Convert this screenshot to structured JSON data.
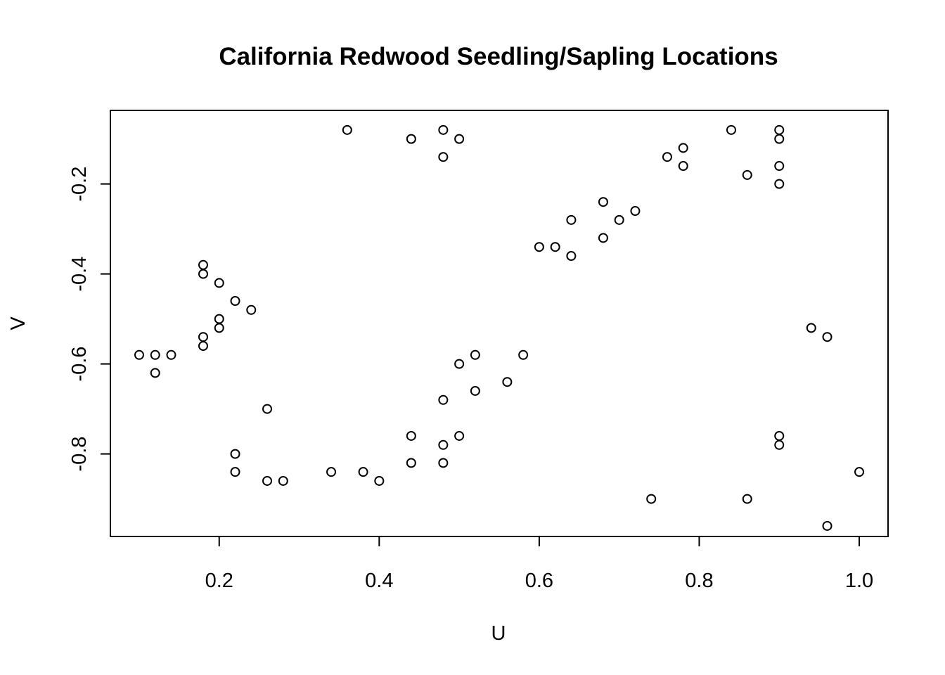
{
  "chart_data": {
    "type": "scatter",
    "title": "California Redwood Seedling/Sapling Locations",
    "xlabel": "U",
    "ylabel": "V",
    "xlim": [
      0.064,
      1.036
    ],
    "ylim": [
      -0.9835,
      -0.0365
    ],
    "grid": false,
    "legend": "none",
    "xticks": [
      0.2,
      0.4,
      0.6,
      0.8,
      1.0
    ],
    "xtick_labels": [
      "0.2",
      "0.4",
      "0.6",
      "0.8",
      "1.0"
    ],
    "yticks": [
      -0.2,
      -0.4,
      -0.6,
      -0.8
    ],
    "ytick_labels": [
      "-0.2",
      "-0.4",
      "-0.6",
      "-0.8"
    ],
    "point_color": "#000000",
    "points": [
      [
        0.36,
        -0.08
      ],
      [
        0.44,
        -0.1
      ],
      [
        0.48,
        -0.08
      ],
      [
        0.48,
        -0.14
      ],
      [
        0.5,
        -0.1
      ],
      [
        0.18,
        -0.38
      ],
      [
        0.18,
        -0.4
      ],
      [
        0.2,
        -0.42
      ],
      [
        0.22,
        -0.46
      ],
      [
        0.24,
        -0.48
      ],
      [
        0.2,
        -0.5
      ],
      [
        0.2,
        -0.52
      ],
      [
        0.18,
        -0.54
      ],
      [
        0.18,
        -0.56
      ],
      [
        0.1,
        -0.58
      ],
      [
        0.12,
        -0.58
      ],
      [
        0.14,
        -0.58
      ],
      [
        0.12,
        -0.62
      ],
      [
        0.26,
        -0.7
      ],
      [
        0.22,
        -0.8
      ],
      [
        0.22,
        -0.84
      ],
      [
        0.26,
        -0.86
      ],
      [
        0.28,
        -0.86
      ],
      [
        0.34,
        -0.84
      ],
      [
        0.38,
        -0.84
      ],
      [
        0.4,
        -0.86
      ],
      [
        0.44,
        -0.76
      ],
      [
        0.44,
        -0.82
      ],
      [
        0.48,
        -0.78
      ],
      [
        0.48,
        -0.82
      ],
      [
        0.5,
        -0.76
      ],
      [
        0.48,
        -0.68
      ],
      [
        0.5,
        -0.6
      ],
      [
        0.52,
        -0.58
      ],
      [
        0.52,
        -0.66
      ],
      [
        0.56,
        -0.64
      ],
      [
        0.58,
        -0.58
      ],
      [
        0.6,
        -0.34
      ],
      [
        0.62,
        -0.34
      ],
      [
        0.64,
        -0.36
      ],
      [
        0.64,
        -0.28
      ],
      [
        0.68,
        -0.24
      ],
      [
        0.68,
        -0.32
      ],
      [
        0.7,
        -0.28
      ],
      [
        0.72,
        -0.26
      ],
      [
        0.76,
        -0.14
      ],
      [
        0.78,
        -0.12
      ],
      [
        0.78,
        -0.16
      ],
      [
        0.84,
        -0.08
      ],
      [
        0.86,
        -0.18
      ],
      [
        0.9,
        -0.08
      ],
      [
        0.9,
        -0.1
      ],
      [
        0.9,
        -0.16
      ],
      [
        0.9,
        -0.2
      ],
      [
        0.94,
        -0.52
      ],
      [
        0.96,
        -0.54
      ],
      [
        0.9,
        -0.76
      ],
      [
        0.9,
        -0.78
      ],
      [
        0.74,
        -0.9
      ],
      [
        0.86,
        -0.9
      ],
      [
        0.96,
        -0.96
      ],
      [
        1.0,
        -0.84
      ]
    ]
  }
}
